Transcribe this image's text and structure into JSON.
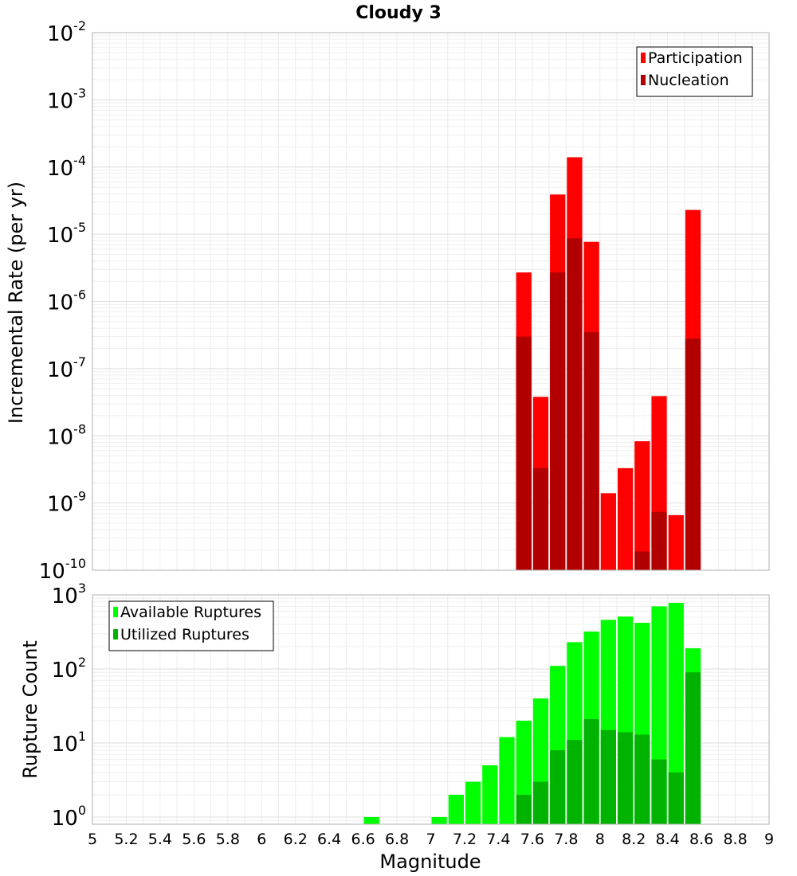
{
  "chart_data": [
    {
      "type": "bar",
      "title": "Cloudy 3",
      "ylabel": "Incremental Rate (per yr)",
      "yscale": "log",
      "ylim": [
        1e-10,
        0.01
      ],
      "xlim": [
        5,
        9
      ],
      "legend_position": "top-right",
      "grid": true,
      "y_tick_labels": [
        {
          "base": "10",
          "exp": "-2"
        },
        {
          "base": "10",
          "exp": "-3"
        },
        {
          "base": "10",
          "exp": "-4"
        },
        {
          "base": "10",
          "exp": "-5"
        },
        {
          "base": "10",
          "exp": "-6"
        },
        {
          "base": "10",
          "exp": "-7"
        },
        {
          "base": "10",
          "exp": "-8"
        },
        {
          "base": "10",
          "exp": "-9"
        },
        {
          "base": "10",
          "exp": "-10"
        }
      ],
      "x": [
        7.55,
        7.65,
        7.75,
        7.85,
        7.95,
        8.05,
        8.15,
        8.25,
        8.35,
        8.45,
        8.55
      ],
      "series": [
        {
          "name": "Participation",
          "color": "#ff0000",
          "values": [
            2.7e-06,
            3.8e-08,
            3.9e-05,
            0.00014,
            7.7e-06,
            1.4e-09,
            3.3e-09,
            8.3e-09,
            3.9e-08,
            6.6e-10,
            2.3e-05
          ]
        },
        {
          "name": "Nucleation",
          "color": "#b20000",
          "values": [
            3e-07,
            3.3e-09,
            2.7e-06,
            8.7e-06,
            3.5e-07,
            null,
            null,
            1.9e-10,
            7.4e-10,
            null,
            2.8e-07
          ]
        }
      ]
    },
    {
      "type": "bar",
      "ylabel": "Rupture Count",
      "xlabel": "Magnitude",
      "yscale": "log",
      "ylim": [
        0.8,
        1000
      ],
      "xlim": [
        5,
        9
      ],
      "legend_position": "top-left",
      "grid": true,
      "y_tick_labels": [
        {
          "base": "10",
          "exp": "3"
        },
        {
          "base": "10",
          "exp": "2"
        },
        {
          "base": "10",
          "exp": "1"
        },
        {
          "base": "10",
          "exp": "0"
        }
      ],
      "x_tick_labels": [
        "5",
        "5.2",
        "5.4",
        "5.6",
        "5.8",
        "6",
        "6.2",
        "6.4",
        "6.6",
        "6.8",
        "7",
        "7.2",
        "7.4",
        "7.6",
        "7.8",
        "8",
        "8.2",
        "8.4",
        "8.6",
        "8.8",
        "9"
      ],
      "x": [
        6.65,
        7.05,
        7.15,
        7.25,
        7.35,
        7.45,
        7.55,
        7.65,
        7.75,
        7.85,
        7.95,
        8.05,
        8.15,
        8.25,
        8.35,
        8.45,
        8.55
      ],
      "series": [
        {
          "name": "Available Ruptures",
          "color": "#00ff00",
          "values": [
            1,
            1,
            2,
            3,
            5,
            12,
            20,
            40,
            110,
            230,
            320,
            460,
            510,
            420,
            700,
            780,
            190
          ]
        },
        {
          "name": "Utilized Ruptures",
          "color": "#00b300",
          "values": [
            null,
            null,
            null,
            null,
            null,
            null,
            2,
            3,
            8,
            11,
            21,
            15,
            14,
            13,
            6,
            4,
            90
          ]
        }
      ]
    }
  ]
}
